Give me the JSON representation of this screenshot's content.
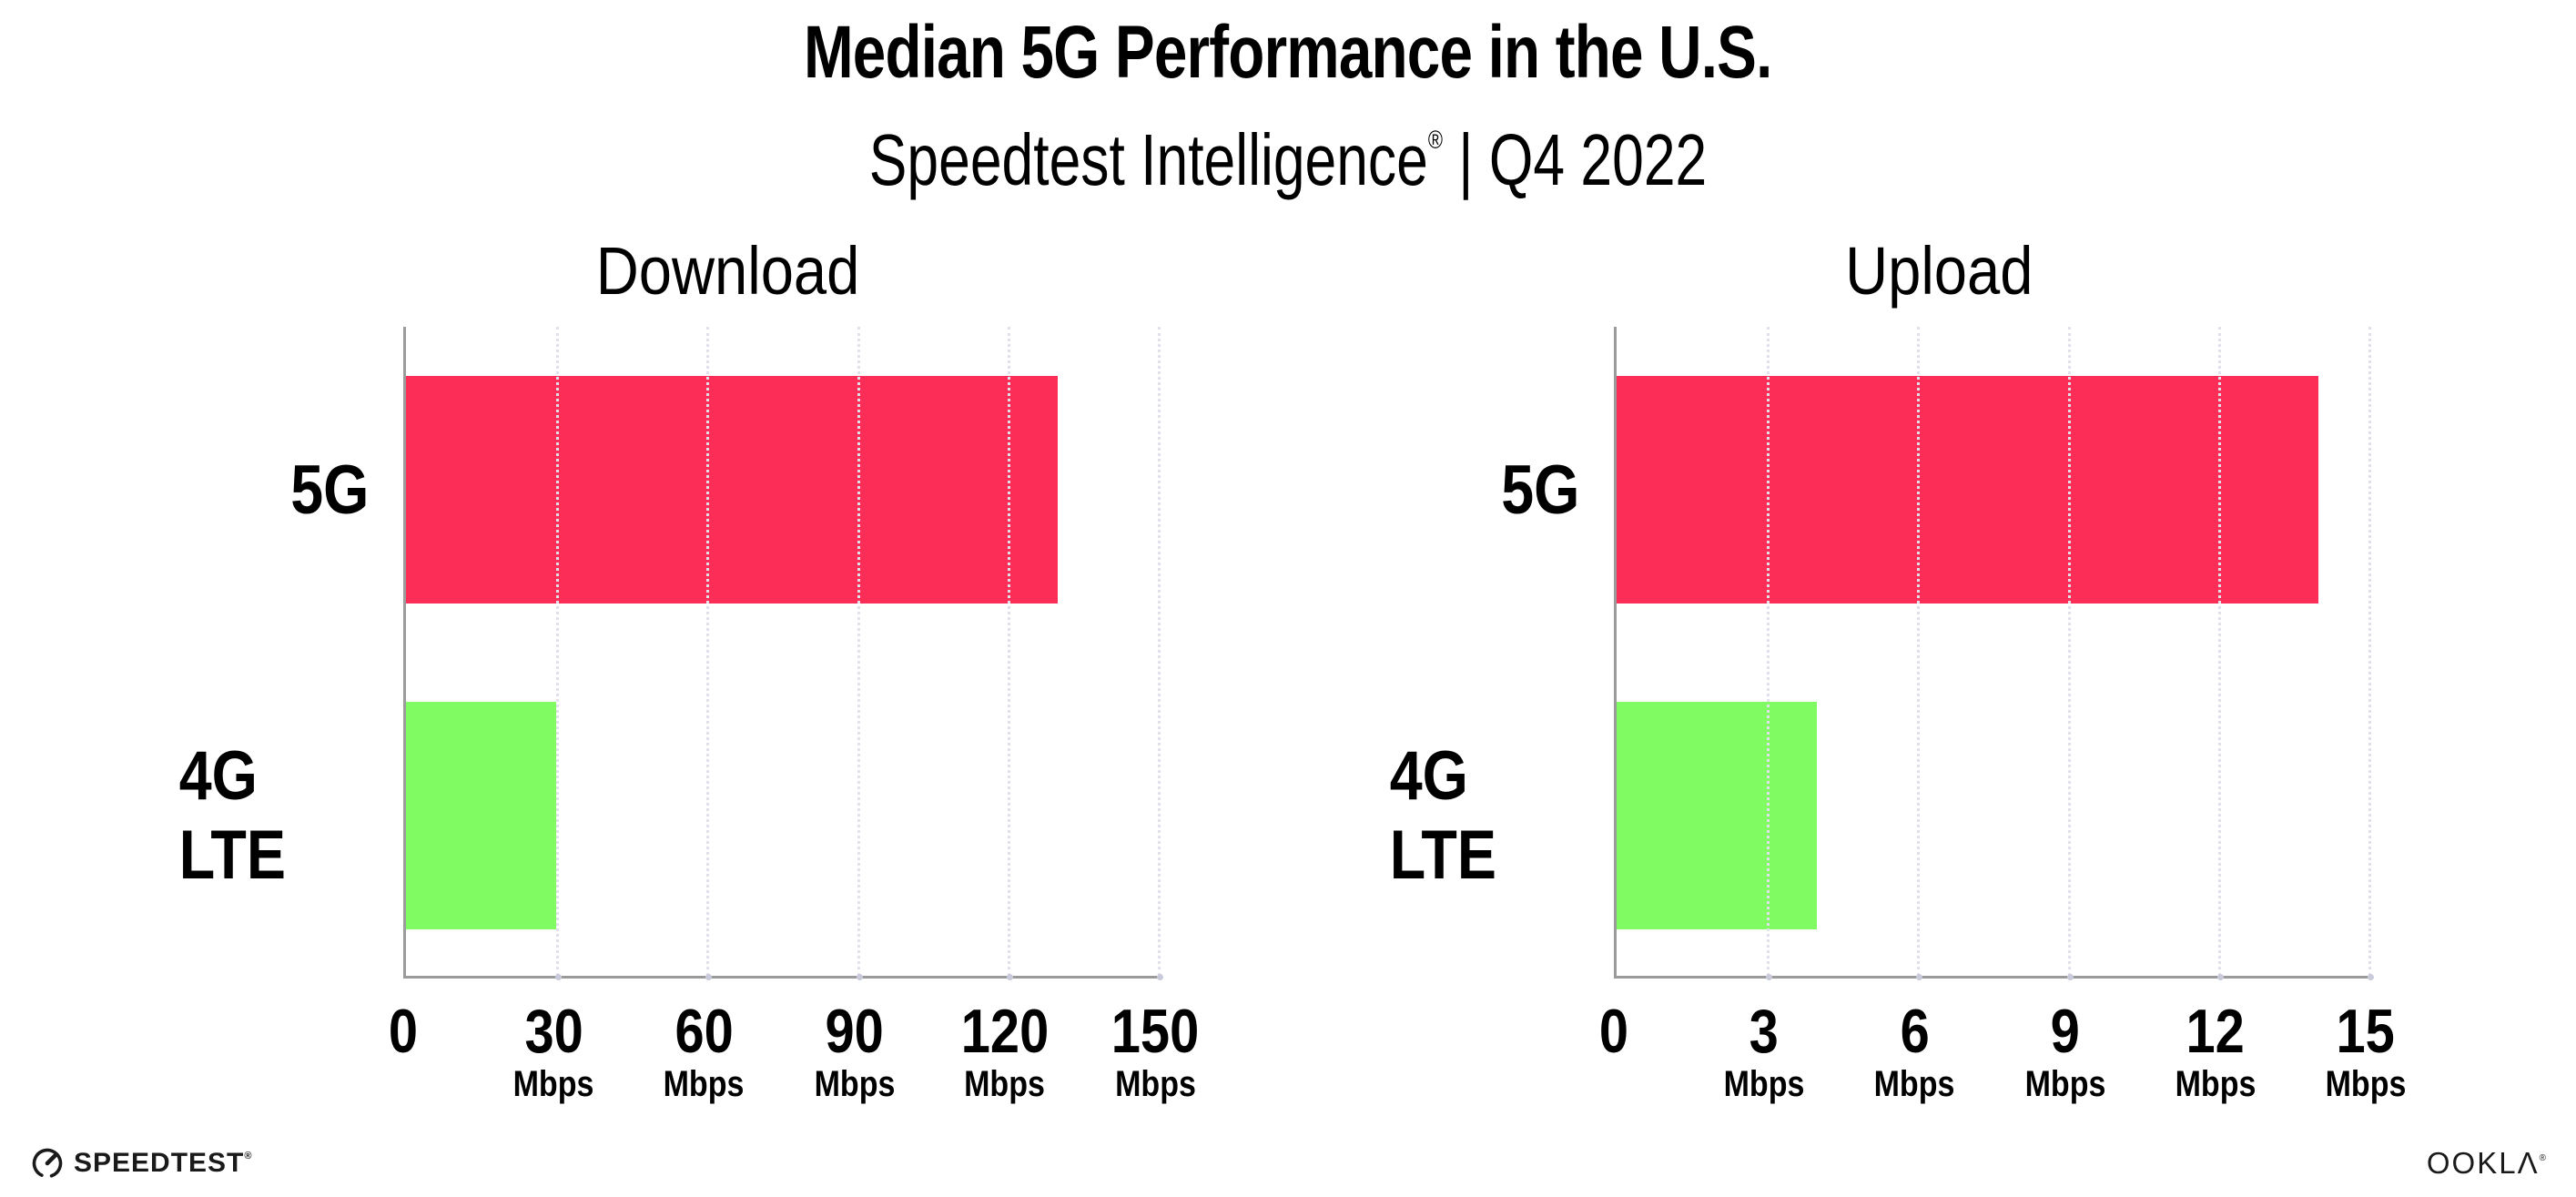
{
  "header": {
    "title": "Median 5G Performance in the U.S.",
    "subtitle_brand": "Speedtest Intelligence",
    "subtitle_reg": "®",
    "subtitle_rest": " | Q4 2022"
  },
  "colors": {
    "bar_5g": "#FC2D57",
    "bar_4g_lte": "#80FB61",
    "axis_line": "#9B9B9B",
    "gridline": "#E0E1EB",
    "grid_dot": "#C9CBDB",
    "text": "#000000"
  },
  "chart_data": [
    {
      "type": "bar",
      "orientation": "horizontal",
      "title": "Download",
      "categories": [
        "5G",
        "4G LTE"
      ],
      "values": [
        130,
        30
      ],
      "unit": "Mbps",
      "xlim": [
        0,
        150
      ],
      "grid": "dotted-vertical",
      "legend": "none",
      "bar_colors": [
        "#FC2D57",
        "#80FB61"
      ],
      "ticks": [
        {
          "label": "0",
          "unit": ""
        },
        {
          "label": "30",
          "unit": "Mbps"
        },
        {
          "label": "60",
          "unit": "Mbps"
        },
        {
          "label": "90",
          "unit": "Mbps"
        },
        {
          "label": "120",
          "unit": "Mbps"
        },
        {
          "label": "150",
          "unit": "Mbps"
        }
      ]
    },
    {
      "type": "bar",
      "orientation": "horizontal",
      "title": "Upload",
      "categories": [
        "5G",
        "4G LTE"
      ],
      "values": [
        14,
        4
      ],
      "unit": "Mbps",
      "xlim": [
        0,
        15
      ],
      "grid": "dotted-vertical",
      "legend": "none",
      "bar_colors": [
        "#FC2D57",
        "#80FB61"
      ],
      "ticks": [
        {
          "label": "0",
          "unit": ""
        },
        {
          "label": "3",
          "unit": "Mbps"
        },
        {
          "label": "6",
          "unit": "Mbps"
        },
        {
          "label": "9",
          "unit": "Mbps"
        },
        {
          "label": "12",
          "unit": "Mbps"
        },
        {
          "label": "15",
          "unit": "Mbps"
        }
      ]
    }
  ],
  "footer": {
    "speedtest_label": "SPEEDTEST",
    "speedtest_reg": "®",
    "ookla_label": "OOKLΛ",
    "ookla_reg": "®"
  }
}
